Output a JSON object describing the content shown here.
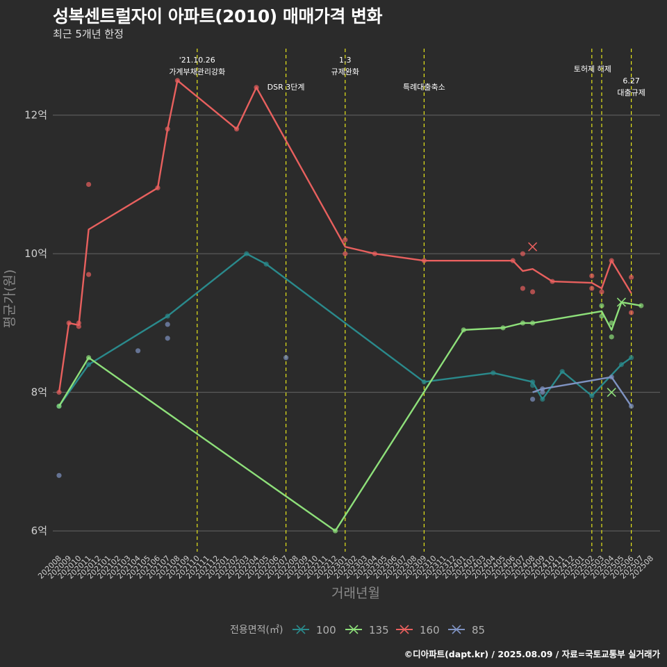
{
  "header": {
    "title": "성복센트럴자이 아파트(2010) 매매가격 변화",
    "subtitle": "최근 5개년 한정",
    "caption": "©디아파트(dapt.kr) / 2025.08.09 / 자료=국토교통부 실거래가"
  },
  "chart_data": {
    "type": "line",
    "xlabel": "거래년월",
    "ylabel": "평균가(원)",
    "ylim": [
      5.7,
      13.0
    ],
    "yticks": [
      {
        "v": 6,
        "label": "6억"
      },
      {
        "v": 8,
        "label": "8억"
      },
      {
        "v": 10,
        "label": "10억"
      },
      {
        "v": 12,
        "label": "12억"
      }
    ],
    "categories": [
      "202008",
      "202009",
      "202010",
      "202011",
      "202012",
      "202101",
      "202102",
      "202103",
      "202104",
      "202105",
      "202106",
      "202107",
      "202108",
      "202109",
      "202110",
      "202111",
      "202112",
      "202201",
      "202202",
      "202203",
      "202204",
      "202205",
      "202206",
      "202207",
      "202208",
      "202209",
      "202210",
      "202211",
      "202212",
      "202301",
      "202302",
      "202303",
      "202304",
      "202305",
      "202306",
      "202307",
      "202308",
      "202309",
      "202310",
      "202311",
      "202312",
      "202401",
      "202402",
      "202403",
      "202404",
      "202405",
      "202406",
      "202407",
      "202408",
      "202409",
      "202410",
      "202411",
      "202412",
      "202501",
      "202502",
      "202503",
      "202504",
      "202505",
      "202506",
      "202507",
      "202508"
    ],
    "legend_title": "전용면적(㎡)",
    "series": [
      {
        "name": "100",
        "color": "#2a8a8c",
        "line": [
          [
            "202008",
            7.8
          ],
          [
            "202011",
            8.4
          ],
          [
            "202107",
            9.1
          ],
          [
            "202203",
            10.0
          ],
          [
            "202205",
            9.85
          ],
          [
            "202309",
            8.15
          ],
          [
            "202404",
            8.28
          ],
          [
            "202408",
            8.15
          ],
          [
            "202409",
            7.9
          ],
          [
            "202411",
            8.3
          ],
          [
            "202502",
            7.95
          ],
          [
            "202505",
            8.4
          ],
          [
            "202506",
            8.5
          ]
        ],
        "points": [
          [
            "202008",
            7.8
          ],
          [
            "202011",
            8.4
          ],
          [
            "202107",
            9.1
          ],
          [
            "202203",
            10.0
          ],
          [
            "202205",
            9.85
          ],
          [
            "202309",
            8.15
          ],
          [
            "202404",
            8.28
          ],
          [
            "202408",
            8.15
          ],
          [
            "202408",
            8.1
          ],
          [
            "202409",
            7.9
          ],
          [
            "202411",
            8.3
          ],
          [
            "202502",
            7.95
          ],
          [
            "202505",
            8.4
          ],
          [
            "202506",
            8.5
          ]
        ],
        "cross": []
      },
      {
        "name": "135",
        "color": "#8ee07a",
        "line": [
          [
            "202008",
            7.8
          ],
          [
            "202011",
            8.5
          ],
          [
            "202212",
            6.0
          ],
          [
            "202401",
            8.9
          ],
          [
            "202405",
            8.93
          ],
          [
            "202407",
            9.0
          ],
          [
            "202408",
            9.0
          ],
          [
            "202503",
            9.17
          ],
          [
            "202504",
            8.9
          ],
          [
            "202505",
            9.3
          ],
          [
            "202507",
            9.25
          ]
        ],
        "points": [
          [
            "202008",
            7.8
          ],
          [
            "202011",
            8.5
          ],
          [
            "202212",
            6.0
          ],
          [
            "202401",
            8.9
          ],
          [
            "202405",
            8.93
          ],
          [
            "202407",
            9.0
          ],
          [
            "202408",
            9.0
          ],
          [
            "202503",
            9.25
          ],
          [
            "202503",
            9.1
          ],
          [
            "202504",
            9.0
          ],
          [
            "202504",
            8.8
          ],
          [
            "202507",
            9.25
          ]
        ],
        "cross": [
          [
            "202505",
            9.3
          ],
          [
            "202504",
            8.0
          ]
        ]
      },
      {
        "name": "160",
        "color": "#e8605e",
        "line": [
          [
            "202008",
            8.0
          ],
          [
            "202009",
            9.0
          ],
          [
            "202010",
            8.97
          ],
          [
            "202011",
            10.35
          ],
          [
            "202106",
            10.95
          ],
          [
            "202107",
            11.8
          ],
          [
            "202108",
            12.5
          ],
          [
            "202202",
            11.8
          ],
          [
            "202204",
            12.4
          ],
          [
            "202301",
            10.1
          ],
          [
            "202304",
            10.0
          ],
          [
            "202309",
            9.9
          ],
          [
            "202406",
            9.9
          ],
          [
            "202407",
            9.75
          ],
          [
            "202408",
            9.78
          ],
          [
            "202410",
            9.6
          ],
          [
            "202502",
            9.58
          ],
          [
            "202503",
            9.5
          ],
          [
            "202504",
            9.9
          ],
          [
            "202506",
            9.43
          ]
        ],
        "points": [
          [
            "202008",
            8.0
          ],
          [
            "202009",
            9.0
          ],
          [
            "202010",
            8.95
          ],
          [
            "202010",
            9.0
          ],
          [
            "202011",
            11.0
          ],
          [
            "202011",
            9.7
          ],
          [
            "202106",
            10.95
          ],
          [
            "202107",
            11.8
          ],
          [
            "202108",
            12.5
          ],
          [
            "202202",
            11.8
          ],
          [
            "202204",
            12.4
          ],
          [
            "202301",
            10.2
          ],
          [
            "202301",
            10.0
          ],
          [
            "202304",
            10.0
          ],
          [
            "202309",
            9.9
          ],
          [
            "202406",
            9.9
          ],
          [
            "202407",
            10.0
          ],
          [
            "202407",
            9.5
          ],
          [
            "202408",
            9.45
          ],
          [
            "202410",
            9.6
          ],
          [
            "202502",
            9.68
          ],
          [
            "202502",
            9.5
          ],
          [
            "202503",
            9.45
          ],
          [
            "202504",
            9.9
          ],
          [
            "202506",
            9.66
          ],
          [
            "202506",
            9.15
          ]
        ],
        "cross": [
          [
            "202408",
            10.1
          ]
        ]
      },
      {
        "name": "85",
        "color": "#7f93c2",
        "line": [
          [
            "202408",
            8.0
          ],
          [
            "202409",
            8.05
          ],
          [
            "202504",
            8.22
          ],
          [
            "202506",
            7.8
          ]
        ],
        "points": [
          [
            "202008",
            6.8
          ],
          [
            "202104",
            8.6
          ],
          [
            "202107",
            8.98
          ],
          [
            "202107",
            8.78
          ],
          [
            "202207",
            8.5
          ],
          [
            "202408",
            7.9
          ],
          [
            "202409",
            8.05
          ],
          [
            "202409",
            8.0
          ],
          [
            "202504",
            8.22
          ],
          [
            "202506",
            7.8
          ]
        ],
        "cross": []
      }
    ],
    "annotations": [
      {
        "x": "202110",
        "lines": [
          "'21.10.26",
          "가계부채관리강화"
        ]
      },
      {
        "x": "202207",
        "lines": [
          "DSR 3단계"
        ]
      },
      {
        "x": "202301",
        "lines": [
          "1.3",
          "규제완화"
        ]
      },
      {
        "x": "202309",
        "lines": [
          "특례대출축소"
        ]
      },
      {
        "x": "202502",
        "lines": [
          "토허제 해제"
        ]
      },
      {
        "x": "202503",
        "lines": []
      },
      {
        "x": "202506",
        "lines": [
          "6.27",
          "대출규제"
        ]
      }
    ]
  }
}
